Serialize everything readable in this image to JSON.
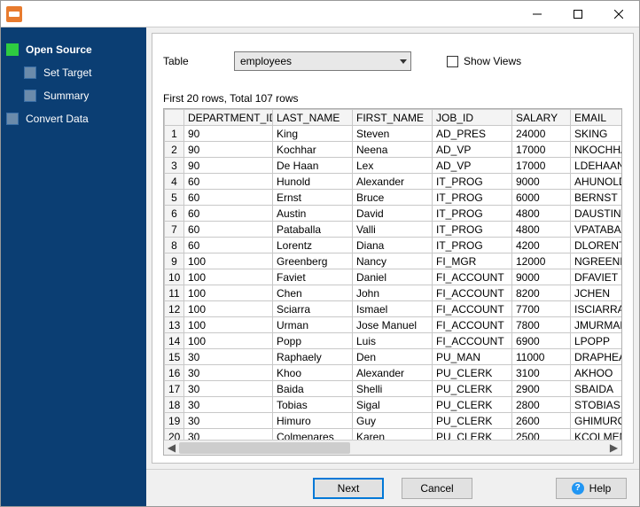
{
  "sidebar": {
    "items": [
      {
        "label": "Open Source",
        "active": true,
        "sub": false
      },
      {
        "label": "Set Target",
        "active": false,
        "sub": true
      },
      {
        "label": "Summary",
        "active": false,
        "sub": true
      },
      {
        "label": "Convert Data",
        "active": false,
        "sub": false
      }
    ]
  },
  "controls": {
    "table_label": "Table",
    "table_value": "employees",
    "show_views_label": "Show Views",
    "show_views_checked": false
  },
  "status_line": "First 20 rows, Total 107 rows",
  "grid": {
    "columns": [
      "DEPARTMENT_ID",
      "LAST_NAME",
      "FIRST_NAME",
      "JOB_ID",
      "SALARY",
      "EMAIL"
    ],
    "rows": [
      [
        "90",
        "King",
        "Steven",
        "AD_PRES",
        "24000",
        "SKING"
      ],
      [
        "90",
        "Kochhar",
        "Neena",
        "AD_VP",
        "17000",
        "NKOCHHAR"
      ],
      [
        "90",
        "De Haan",
        "Lex",
        "AD_VP",
        "17000",
        "LDEHAAN"
      ],
      [
        "60",
        "Hunold",
        "Alexander",
        "IT_PROG",
        "9000",
        "AHUNOLD"
      ],
      [
        "60",
        "Ernst",
        "Bruce",
        "IT_PROG",
        "6000",
        "BERNST"
      ],
      [
        "60",
        "Austin",
        "David",
        "IT_PROG",
        "4800",
        "DAUSTIN"
      ],
      [
        "60",
        "Pataballa",
        "Valli",
        "IT_PROG",
        "4800",
        "VPATABAL"
      ],
      [
        "60",
        "Lorentz",
        "Diana",
        "IT_PROG",
        "4200",
        "DLORENTZ"
      ],
      [
        "100",
        "Greenberg",
        "Nancy",
        "FI_MGR",
        "12000",
        "NGREENBE"
      ],
      [
        "100",
        "Faviet",
        "Daniel",
        "FI_ACCOUNT",
        "9000",
        "DFAVIET"
      ],
      [
        "100",
        "Chen",
        "John",
        "FI_ACCOUNT",
        "8200",
        "JCHEN"
      ],
      [
        "100",
        "Sciarra",
        "Ismael",
        "FI_ACCOUNT",
        "7700",
        "ISCIARRA"
      ],
      [
        "100",
        "Urman",
        "Jose Manuel",
        "FI_ACCOUNT",
        "7800",
        "JMURMAN"
      ],
      [
        "100",
        "Popp",
        "Luis",
        "FI_ACCOUNT",
        "6900",
        "LPOPP"
      ],
      [
        "30",
        "Raphaely",
        "Den",
        "PU_MAN",
        "11000",
        "DRAPHEAL"
      ],
      [
        "30",
        "Khoo",
        "Alexander",
        "PU_CLERK",
        "3100",
        "AKHOO"
      ],
      [
        "30",
        "Baida",
        "Shelli",
        "PU_CLERK",
        "2900",
        "SBAIDA"
      ],
      [
        "30",
        "Tobias",
        "Sigal",
        "PU_CLERK",
        "2800",
        "STOBIAS"
      ],
      [
        "30",
        "Himuro",
        "Guy",
        "PU_CLERK",
        "2600",
        "GHIMURO"
      ],
      [
        "30",
        "Colmenares",
        "Karen",
        "PU_CLERK",
        "2500",
        "KCOLMENA"
      ]
    ]
  },
  "footer": {
    "next": "Next",
    "cancel": "Cancel",
    "help": "Help"
  },
  "colors": {
    "sidebar_bg": "#0b3e73",
    "active_step": "#2ecc40",
    "primary_border": "#0078d7",
    "app_icon": "#e87b2e"
  }
}
